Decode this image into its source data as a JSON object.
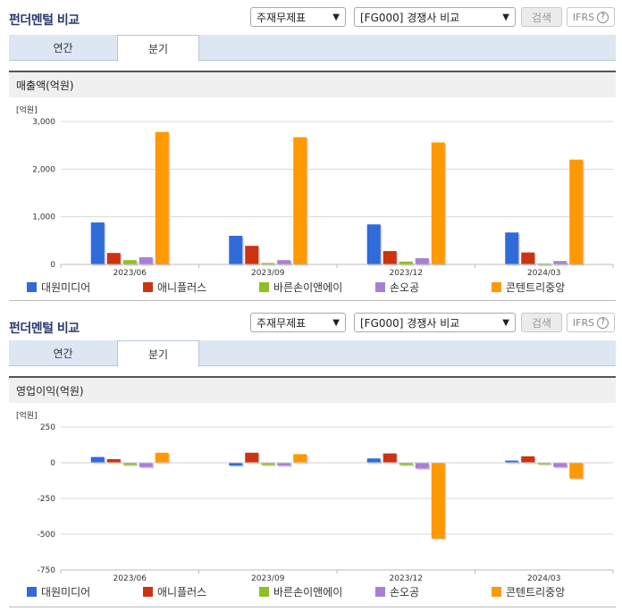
{
  "panels": [
    {
      "title": "펀더멘털 비교",
      "select_statement": "주재무제표",
      "select_compare": "[FG000] 경쟁사 비교",
      "search_label": "검색",
      "ifrs_label": "IFRS",
      "help_label": "?",
      "tabs": [
        {
          "label": "연간"
        },
        {
          "label": "분기"
        }
      ],
      "active_tab": 1,
      "metric_label": "매출액(억원)"
    },
    {
      "title": "펀더멘털 비교",
      "select_statement": "주재무제표",
      "select_compare": "[FG000] 경쟁사 비교",
      "search_label": "검색",
      "ifrs_label": "IFRS",
      "help_label": "?",
      "tabs": [
        {
          "label": "연간"
        },
        {
          "label": "분기"
        }
      ],
      "active_tab": 1,
      "metric_label": "영업이익(억원)"
    }
  ],
  "chart_data": [
    {
      "type": "bar",
      "unit_label": "[억원]",
      "categories": [
        "2023/06",
        "2023/09",
        "2023/12",
        "2024/03"
      ],
      "ylim": [
        0,
        3000
      ],
      "yticks": [
        0,
        1000,
        2000,
        3000
      ],
      "ytick_labels": [
        "0",
        "1,000",
        "2,000",
        "3,000"
      ],
      "grid": true,
      "legend_position": "bottom",
      "series": [
        {
          "name": "대원미디어",
          "color": "#2f6bd9",
          "values": [
            880,
            600,
            840,
            670
          ]
        },
        {
          "name": "애니플러스",
          "color": "#cc3311",
          "values": [
            240,
            390,
            280,
            250
          ]
        },
        {
          "name": "바른손이앤에이",
          "color": "#8fbf22",
          "values": [
            90,
            30,
            60,
            20
          ]
        },
        {
          "name": "손오공",
          "color": "#a97fd6",
          "values": [
            150,
            90,
            130,
            70
          ]
        },
        {
          "name": "콘텐트리중앙",
          "color": "#ff9900",
          "values": [
            2780,
            2670,
            2560,
            2200
          ]
        }
      ]
    },
    {
      "type": "bar",
      "unit_label": "[억원]",
      "categories": [
        "2023/06",
        "2023/09",
        "2023/12",
        "2024/03"
      ],
      "ylim": [
        -750,
        250
      ],
      "yticks": [
        -750,
        -500,
        -250,
        0,
        250
      ],
      "ytick_labels": [
        "-750",
        "-500",
        "-250",
        "0",
        "250"
      ],
      "grid": true,
      "legend_position": "bottom",
      "series": [
        {
          "name": "대원미디어",
          "color": "#2f6bd9",
          "values": [
            40,
            -20,
            30,
            15
          ]
        },
        {
          "name": "애니플러스",
          "color": "#cc3311",
          "values": [
            25,
            70,
            65,
            45
          ]
        },
        {
          "name": "바른손이앤에이",
          "color": "#8fbf22",
          "values": [
            -15,
            -15,
            -15,
            -10
          ]
        },
        {
          "name": "손오공",
          "color": "#a97fd6",
          "values": [
            -30,
            -20,
            -40,
            -30
          ]
        },
        {
          "name": "콘텐트리중앙",
          "color": "#ff9900",
          "values": [
            70,
            60,
            -530,
            -110
          ]
        }
      ]
    }
  ]
}
